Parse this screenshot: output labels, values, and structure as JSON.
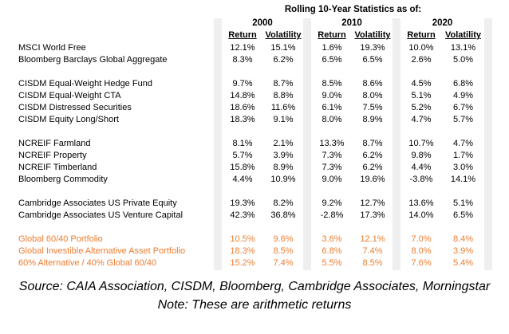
{
  "chart_data": {
    "type": "table",
    "title": "Rolling 10-Year Statistics as of:",
    "column_groups": [
      {
        "year": "2000",
        "headers": [
          "Return",
          "Volatility"
        ]
      },
      {
        "year": "2010",
        "headers": [
          "Return",
          "Volatility"
        ]
      },
      {
        "year": "2020",
        "headers": [
          "Return",
          "Volatility"
        ]
      }
    ],
    "sections": [
      {
        "rows": [
          {
            "label": "MSCI World Free",
            "values": [
              "12.1%",
              "15.1%",
              "1.6%",
              "19.3%",
              "10.0%",
              "13.1%"
            ],
            "highlight": false
          },
          {
            "label": "Bloomberg Barclays Global Aggregate",
            "values": [
              "8.3%",
              "6.2%",
              "6.5%",
              "6.5%",
              "2.6%",
              "5.0%"
            ],
            "highlight": false
          }
        ]
      },
      {
        "rows": [
          {
            "label": "CISDM Equal-Weight Hedge Fund",
            "values": [
              "9.7%",
              "8.7%",
              "8.5%",
              "8.6%",
              "4.5%",
              "6.8%"
            ],
            "highlight": false
          },
          {
            "label": "CISDM Equal-Weight CTA",
            "values": [
              "14.8%",
              "8.8%",
              "9.0%",
              "8.0%",
              "5.1%",
              "4.9%"
            ],
            "highlight": false
          },
          {
            "label": "CISDM Distressed Securities",
            "values": [
              "18.6%",
              "11.6%",
              "6.1%",
              "7.5%",
              "5.2%",
              "6.7%"
            ],
            "highlight": false
          },
          {
            "label": "CISDM Equity Long/Short",
            "values": [
              "18.3%",
              "9.1%",
              "8.0%",
              "8.9%",
              "4.7%",
              "5.7%"
            ],
            "highlight": false
          }
        ]
      },
      {
        "rows": [
          {
            "label": "NCREIF Farmland",
            "values": [
              "8.1%",
              "2.1%",
              "13.3%",
              "8.7%",
              "10.7%",
              "4.7%"
            ],
            "highlight": false
          },
          {
            "label": "NCREIF Property",
            "values": [
              "5.7%",
              "3.9%",
              "7.3%",
              "6.2%",
              "9.8%",
              "1.7%"
            ],
            "highlight": false
          },
          {
            "label": "NCREIF Timberland",
            "values": [
              "15.8%",
              "8.9%",
              "7.3%",
              "6.2%",
              "4.4%",
              "3.0%"
            ],
            "highlight": false
          },
          {
            "label": "Bloomberg Commodity",
            "values": [
              "4.4%",
              "10.9%",
              "9.0%",
              "19.6%",
              "-3.8%",
              "14.1%"
            ],
            "highlight": false
          }
        ]
      },
      {
        "rows": [
          {
            "label": "Cambridge Associates US Private Equity",
            "values": [
              "19.3%",
              "8.2%",
              "9.2%",
              "12.7%",
              "13.6%",
              "5.1%"
            ],
            "highlight": false
          },
          {
            "label": "Cambridge Associates US Venture Capital",
            "values": [
              "42.3%",
              "36.8%",
              "-2.8%",
              "17.3%",
              "14.0%",
              "6.5%"
            ],
            "highlight": false
          }
        ]
      },
      {
        "rows": [
          {
            "label": "Global 60/40 Portfolio",
            "values": [
              "10.5%",
              "9.6%",
              "3.6%",
              "12.1%",
              "7.0%",
              "8.4%"
            ],
            "highlight": true
          },
          {
            "label": "Global Investible Alternative Asset Portfolio",
            "values": [
              "18.3%",
              "8.5%",
              "6.8%",
              "7.4%",
              "8.0%",
              "3.9%"
            ],
            "highlight": true
          },
          {
            "label": "60% Alternative / 40% Global 60/40",
            "values": [
              "15.2%",
              "7.4%",
              "5.5%",
              "8.5%",
              "7.6%",
              "5.4%"
            ],
            "highlight": true
          }
        ]
      }
    ],
    "legend_position": "none",
    "grid": "off"
  },
  "footer": {
    "source": "Source: CAIA Association, CISDM, Bloomberg, Cambridge Associates, Morningstar",
    "note": "Note: These are arithmetic returns"
  },
  "colors": {
    "highlight": "#ED7D31",
    "separator": "#EFEFEF",
    "text": "#000000"
  }
}
